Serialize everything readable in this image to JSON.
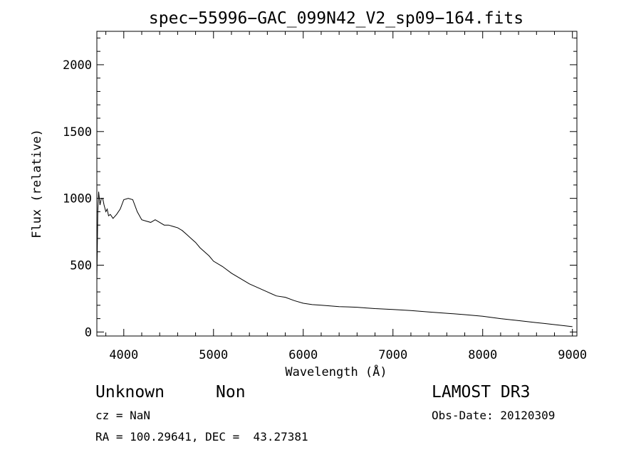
{
  "chart_data": {
    "type": "line",
    "title": "spec−55996−GAC_099N42_V2_sp09−164.fits",
    "xlabel": "Wavelength (Å)",
    "ylabel": "Flux (relative)",
    "xlim": [
      3700,
      9050
    ],
    "ylim": [
      -30,
      2250
    ],
    "xticks": [
      4000,
      5000,
      6000,
      7000,
      8000,
      9000
    ],
    "yticks": [
      0,
      500,
      1000,
      1500,
      2000
    ],
    "grid": false,
    "series": [
      {
        "x": [
          3700,
          3710,
          3720,
          3735,
          3750,
          3765,
          3780,
          3800,
          3815,
          3830,
          3850,
          3880,
          3920,
          3960,
          4000,
          4050,
          4100,
          4150,
          4200,
          4250,
          4300,
          4350,
          4400,
          4450,
          4500,
          4550,
          4600,
          4650,
          4700,
          4750,
          4800,
          4850,
          4900,
          4950,
          5000,
          5100,
          5200,
          5300,
          5400,
          5500,
          5600,
          5700,
          5800,
          5900,
          6000,
          6100,
          6200,
          6300,
          6400,
          6500,
          6600,
          6700,
          6800,
          6900,
          7000,
          7200,
          7400,
          7600,
          7800,
          8000,
          8200,
          8400,
          8600,
          8800,
          9000
        ],
        "values": [
          380,
          900,
          1050,
          950,
          1000,
          1000,
          950,
          900,
          920,
          870,
          880,
          850,
          880,
          920,
          990,
          1000,
          990,
          900,
          840,
          830,
          820,
          840,
          820,
          800,
          800,
          790,
          780,
          760,
          730,
          700,
          670,
          630,
          600,
          570,
          530,
          490,
          440,
          400,
          360,
          330,
          300,
          270,
          260,
          235,
          215,
          205,
          200,
          195,
          190,
          188,
          185,
          180,
          175,
          172,
          168,
          160,
          150,
          140,
          130,
          118,
          100,
          85,
          70,
          55,
          40
        ]
      }
    ]
  },
  "info": {
    "object_class": "Unknown",
    "subclass": "Non",
    "survey": "LAMOST DR3",
    "cz": "cz = NaN",
    "obs_date": "Obs-Date: 20120309",
    "coords": "RA = 100.29641, DEC =  43.27381"
  }
}
